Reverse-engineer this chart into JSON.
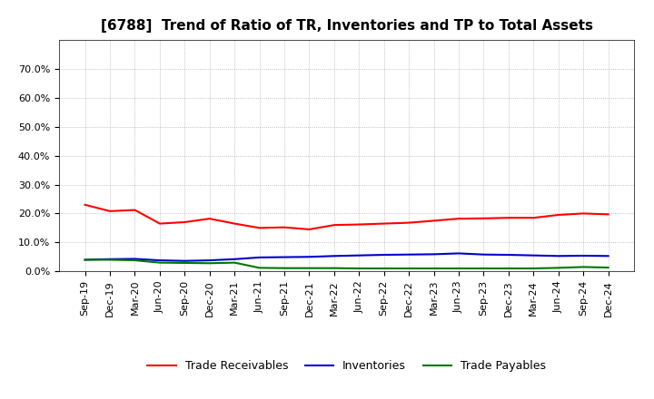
{
  "title": "[6788]  Trend of Ratio of TR, Inventories and TP to Total Assets",
  "ylim": [
    0.0,
    0.8
  ],
  "yticks": [
    0.0,
    0.1,
    0.2,
    0.3,
    0.4,
    0.5,
    0.6,
    0.7
  ],
  "ytick_labels": [
    "0.0%",
    "10.0%",
    "20.0%",
    "30.0%",
    "40.0%",
    "50.0%",
    "60.0%",
    "70.0%"
  ],
  "labels": [
    "Sep-19",
    "Dec-19",
    "Mar-20",
    "Jun-20",
    "Sep-20",
    "Dec-20",
    "Mar-21",
    "Jun-21",
    "Sep-21",
    "Dec-21",
    "Mar-22",
    "Jun-22",
    "Sep-22",
    "Dec-22",
    "Mar-23",
    "Jun-23",
    "Sep-23",
    "Dec-23",
    "Mar-24",
    "Jun-24",
    "Sep-24",
    "Dec-24"
  ],
  "trade_receivables": [
    0.23,
    0.208,
    0.212,
    0.165,
    0.17,
    0.182,
    0.165,
    0.15,
    0.152,
    0.145,
    0.16,
    0.162,
    0.165,
    0.168,
    0.175,
    0.182,
    0.183,
    0.185,
    0.185,
    0.195,
    0.2,
    0.197
  ],
  "inventories": [
    0.04,
    0.042,
    0.043,
    0.038,
    0.036,
    0.038,
    0.042,
    0.048,
    0.049,
    0.05,
    0.053,
    0.055,
    0.057,
    0.058,
    0.059,
    0.062,
    0.058,
    0.057,
    0.055,
    0.053,
    0.054,
    0.053
  ],
  "trade_payables": [
    0.04,
    0.04,
    0.038,
    0.03,
    0.029,
    0.028,
    0.03,
    0.012,
    0.011,
    0.011,
    0.011,
    0.01,
    0.01,
    0.01,
    0.01,
    0.01,
    0.01,
    0.01,
    0.01,
    0.012,
    0.015,
    0.013
  ],
  "line_color_tr": "#FF0000",
  "line_color_inv": "#0000CC",
  "line_color_tp": "#007700",
  "legend_labels": [
    "Trade Receivables",
    "Inventories",
    "Trade Payables"
  ],
  "background_color": "#FFFFFF",
  "grid_color": "#999999",
  "title_fontsize": 11,
  "tick_fontsize": 8,
  "legend_fontsize": 9
}
